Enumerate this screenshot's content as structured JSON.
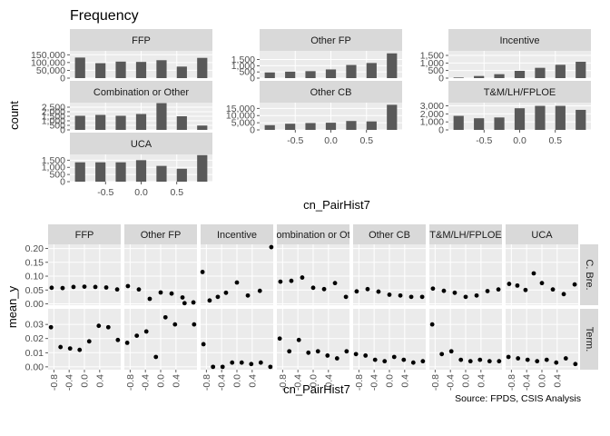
{
  "colors": {
    "panel_bg": "#ebebeb",
    "strip_bg": "#d9d9d9",
    "grid_major": "#ffffff",
    "grid_minor": "#f4f4f4",
    "bar_fill": "#595959",
    "point_fill": "#000000",
    "tick_text": "#4d4d4d"
  },
  "caption": "Source: FPDS, CSIS Analysis",
  "chart_data": [
    {
      "type": "bar",
      "title": "Frequency",
      "xlabel": "cn_PairHist7",
      "ylabel": "count",
      "x": [
        -0.857,
        -0.571,
        -0.286,
        0.0,
        0.286,
        0.571,
        0.857
      ],
      "x_ticks": [
        -0.5,
        0.0,
        0.5
      ],
      "x_tick_labels": [
        "-0.5",
        "0.0",
        "0.5"
      ],
      "xlim": [
        -1.0,
        1.0
      ],
      "facet_scales": "free_y",
      "facets": [
        {
          "name": "FFP",
          "values": [
            132000,
            96000,
            106000,
            104000,
            115000,
            74000,
            130000
          ],
          "ylim": [
            0,
            175000
          ],
          "y_ticks": [
            0,
            50000,
            100000,
            150000
          ],
          "y_tick_labels": [
            "0",
            "50,000",
            "100,000",
            "150,000"
          ]
        },
        {
          "name": "Other FP",
          "values": [
            460,
            520,
            560,
            700,
            1060,
            1220,
            2000
          ],
          "ylim": [
            0,
            2200
          ],
          "y_ticks": [
            0,
            500,
            1000,
            1500
          ],
          "y_tick_labels": [
            "0",
            "500",
            "1,000",
            "1,500"
          ]
        },
        {
          "name": "Incentive",
          "values": [
            40,
            140,
            260,
            480,
            680,
            880,
            1080
          ],
          "ylim": [
            0,
            1800
          ],
          "y_ticks": [
            0,
            500,
            1000,
            1500
          ],
          "y_tick_labels": [
            "0",
            "500",
            "1,000",
            "1,500"
          ]
        },
        {
          "name": "Combination or Other",
          "values": [
            1550,
            1650,
            1550,
            1750,
            2950,
            1500,
            480
          ],
          "ylim": [
            0,
            3000
          ],
          "y_ticks": [
            0,
            500,
            1000,
            1500,
            2000,
            2500
          ],
          "y_tick_labels": [
            "0",
            "500",
            "1,000",
            "1,500",
            "2,000",
            "2,500"
          ]
        },
        {
          "name": "Other CB",
          "values": [
            3300,
            4300,
            4800,
            5000,
            6200,
            5900,
            17500
          ],
          "ylim": [
            0,
            19000
          ],
          "y_ticks": [
            0,
            5000,
            10000,
            15000
          ],
          "y_tick_labels": [
            "0",
            "5,000",
            "10,000",
            "15,000"
          ]
        },
        {
          "name": "T&M/LH/FPLOE",
          "values": [
            1750,
            1450,
            1550,
            2700,
            3000,
            3000,
            2500
          ],
          "ylim": [
            0,
            3400
          ],
          "y_ticks": [
            0,
            1000,
            2000,
            3000
          ],
          "y_tick_labels": [
            "0",
            "1,000",
            "2,000",
            "3,000"
          ]
        },
        {
          "name": "UCA",
          "values": [
            1350,
            1350,
            1350,
            1500,
            1100,
            900,
            1850
          ],
          "ylim": [
            0,
            1900
          ],
          "y_ticks": [
            0,
            500,
            1000,
            1500
          ],
          "y_tick_labels": [
            "0",
            "500",
            "1,000",
            "1,500"
          ]
        }
      ]
    },
    {
      "type": "scatter",
      "xlabel": "cn_PairHist7",
      "ylabel": "mean_y",
      "x": [
        -0.857,
        -0.571,
        -0.286,
        0.0,
        0.286,
        0.571,
        0.857
      ],
      "x_ticks": [
        -0.8,
        -0.4,
        0.0,
        0.4
      ],
      "x_tick_labels": [
        "-0.8",
        "-0.4",
        "0.0",
        "0.4"
      ],
      "xlim": [
        -0.95,
        0.95
      ],
      "columns": [
        {
          "label": "FFP",
          "label_shown": "FFP"
        },
        {
          "label": "Other FP",
          "label_shown": "Other FP"
        },
        {
          "label": "Incentive",
          "label_shown": "Incentive"
        },
        {
          "label": "Combination or Other",
          "label_shown": "ombination or Ot"
        },
        {
          "label": "Other CB",
          "label_shown": "Other CB"
        },
        {
          "label": "T&M/LH/FPLOE",
          "label_shown": "T&M/LH/FPLOE"
        },
        {
          "label": "UCA",
          "label_shown": "UCA"
        }
      ],
      "rows": [
        {
          "label": "C. Bre.",
          "ylim": [
            -0.005,
            0.215
          ],
          "y_ticks": [
            0.0,
            0.05,
            0.1,
            0.15,
            0.2
          ],
          "y_tick_labels": [
            "0.00",
            "0.05",
            "0.10",
            "0.15",
            "0.20"
          ],
          "values": [
            [
              0.058,
              0.057,
              0.061,
              0.062,
              0.061,
              0.059,
              0.052
            ],
            [
              0.064,
              0.052,
              0.018,
              0.041,
              0.037,
              0.023,
              0.005
            ],
            [
              0.115,
              0.012,
              0.025,
              0.04,
              0.077,
              0.03,
              0.047,
              0.205
            ],
            [
              0.08,
              0.083,
              0.095,
              0.058,
              0.053,
              0.075,
              0.025
            ],
            [
              0.045,
              0.053,
              0.044,
              0.033,
              0.03,
              0.025,
              0.025
            ],
            [
              0.055,
              0.047,
              0.04,
              0.025,
              0.03,
              0.046,
              0.052
            ],
            [
              0.072,
              0.066,
              0.05,
              0.11,
              0.075,
              0.052,
              0.035,
              0.07
            ]
          ],
          "x_overrides": [
            null,
            null,
            [
              -0.9,
              -0.714,
              -0.5,
              -0.286,
              0.0,
              0.286,
              0.6,
              0.9
            ],
            null,
            null,
            null,
            [
              -0.857,
              -0.643,
              -0.429,
              -0.214,
              0.0,
              0.286,
              0.571,
              0.857
            ]
          ]
        },
        {
          "label": "Term.",
          "ylim": [
            -0.002,
            0.041
          ],
          "y_ticks": [
            0.0,
            0.01,
            0.02,
            0.03
          ],
          "y_tick_labels": [
            "0.00",
            "0.01",
            "0.02",
            "0.03"
          ],
          "values": [
            [
              0.028,
              0.014,
              0.013,
              0.012,
              0.018,
              0.029,
              0.028,
              0.019
            ],
            [
              0.017,
              0.022,
              0.025,
              0.007,
              0.035,
              0.03,
              0.045,
              0.03
            ],
            [
              0.016,
              0.0,
              0.0,
              0.003,
              0.003,
              0.002,
              0.003,
              0.0
            ],
            [
              0.02,
              0.011,
              0.019,
              0.01,
              0.011,
              0.008,
              0.006,
              0.011
            ],
            [
              0.009,
              0.008,
              0.005,
              0.004,
              0.007,
              0.005,
              0.003,
              0.004
            ],
            [
              0.03,
              0.009,
              0.011,
              0.005,
              0.004,
              0.005,
              0.004,
              0.004
            ],
            [
              0.007,
              0.006,
              0.005,
              0.004,
              0.005,
              0.003,
              0.006,
              0.002
            ]
          ],
          "x_shared": [
            -0.875,
            -0.625,
            -0.375,
            -0.125,
            0.125,
            0.375,
            0.625,
            0.875
          ]
        }
      ]
    }
  ]
}
